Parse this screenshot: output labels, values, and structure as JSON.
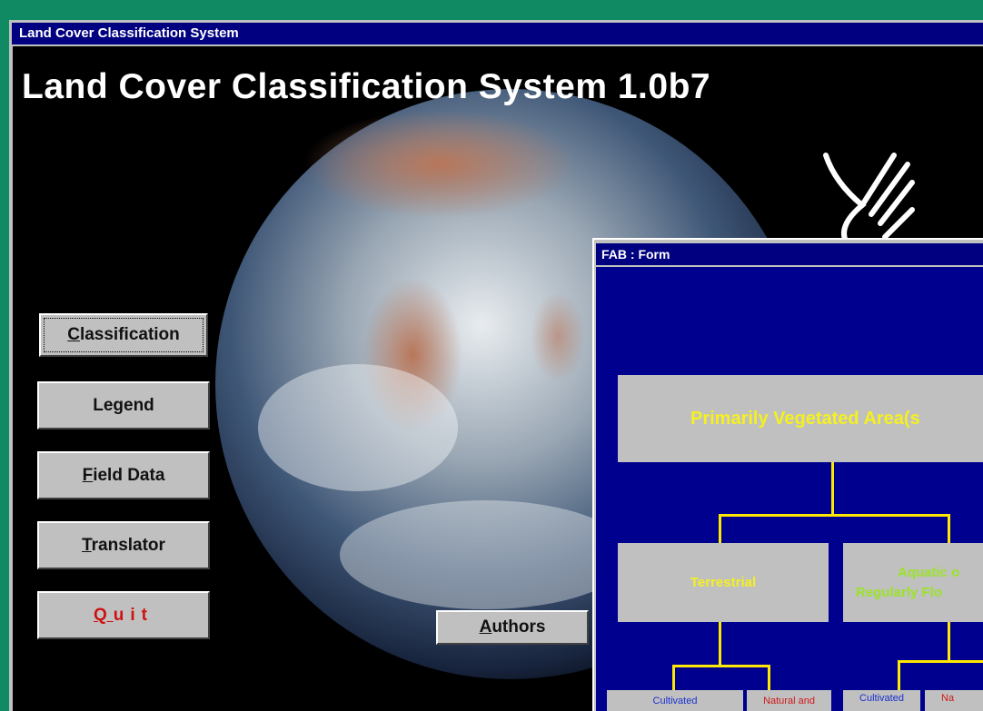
{
  "window": {
    "title": "Land Cover Classification System",
    "heading": "Land Cover Classification System 1.0b7"
  },
  "buttons": [
    "Classification",
    "Legend",
    "Field Data",
    "Translator",
    "Quit",
    "Authors"
  ],
  "form": {
    "title": "FAB : Form",
    "root": "Primarily Vegetated Area(s",
    "level1": [
      {
        "lines": [
          "Terrestrial"
        ]
      },
      {
        "lines": [
          "Aquatic o",
          "Regularly Flo"
        ]
      }
    ],
    "leaves": [
      "Cultivated",
      "Natural and",
      "Cultivated",
      "Na"
    ]
  }
}
